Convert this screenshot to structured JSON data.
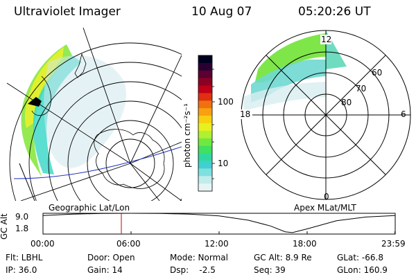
{
  "header": {
    "instrument": "Ultraviolet Imager",
    "date": "10 Aug 07",
    "time": "05:20:26 UT"
  },
  "colorbar": {
    "label": "photon cm⁻²s⁻¹",
    "ticks": [
      "100",
      "10"
    ],
    "colors": [
      "#000020",
      "#2a0033",
      "#5a0033",
      "#8c0022",
      "#c00018",
      "#e03010",
      "#f07010",
      "#f8a010",
      "#f8d010",
      "#e8f020",
      "#b0f030",
      "#70e840",
      "#40e060",
      "#30d8a0",
      "#40d0d0",
      "#80e0e0",
      "#c0ecec",
      "#e8f4f4"
    ]
  },
  "panels": {
    "left_label": "Geographic Lat/Lon",
    "right_label": "Apex MLat/MLT",
    "mlt_labels": {
      "top": "12",
      "left": "18",
      "right": "6",
      "bottom": "0"
    },
    "mlat_labels": [
      "60",
      "70",
      "80"
    ]
  },
  "altitude_plot": {
    "ylabel": "GC Alt",
    "yticks": [
      "9.0",
      "1.8"
    ],
    "xticks": [
      "00:00",
      "06:00",
      "12:00",
      "18:00",
      "23:59"
    ]
  },
  "footer": {
    "filter": "Flt: LBHL",
    "ip": "IP: 36.0",
    "door": "Door: Open",
    "gain": "Gain: 14",
    "mode": "Mode: Normal",
    "dsp": "Dsp:    -2.5",
    "gc_alt": "GC Alt: 8.9 Re",
    "seq": "Seq: 39",
    "glat": "GLat: -66.8",
    "glon": "GLon: 160.9"
  },
  "chart_data": {
    "type": "line",
    "xlabel": "",
    "ylabel": "GC Alt",
    "xlim": [
      "00:00",
      "23:59"
    ],
    "ylim": [
      1.8,
      9.0
    ],
    "x_hours": [
      0,
      2,
      4,
      6,
      8,
      10,
      12,
      14,
      15.5,
      16.5,
      17,
      18,
      20,
      22,
      23.98
    ],
    "y": [
      8.2,
      8.7,
      8.95,
      9.0,
      8.95,
      8.7,
      8.1,
      6.6,
      4.6,
      2.6,
      2.3,
      3.6,
      6.4,
      7.7,
      8.2
    ],
    "marker_time_hours": 5.34,
    "marker_color": "#cc0000",
    "colors": {
      "line": "#000000",
      "marker": "#cc0000"
    }
  }
}
